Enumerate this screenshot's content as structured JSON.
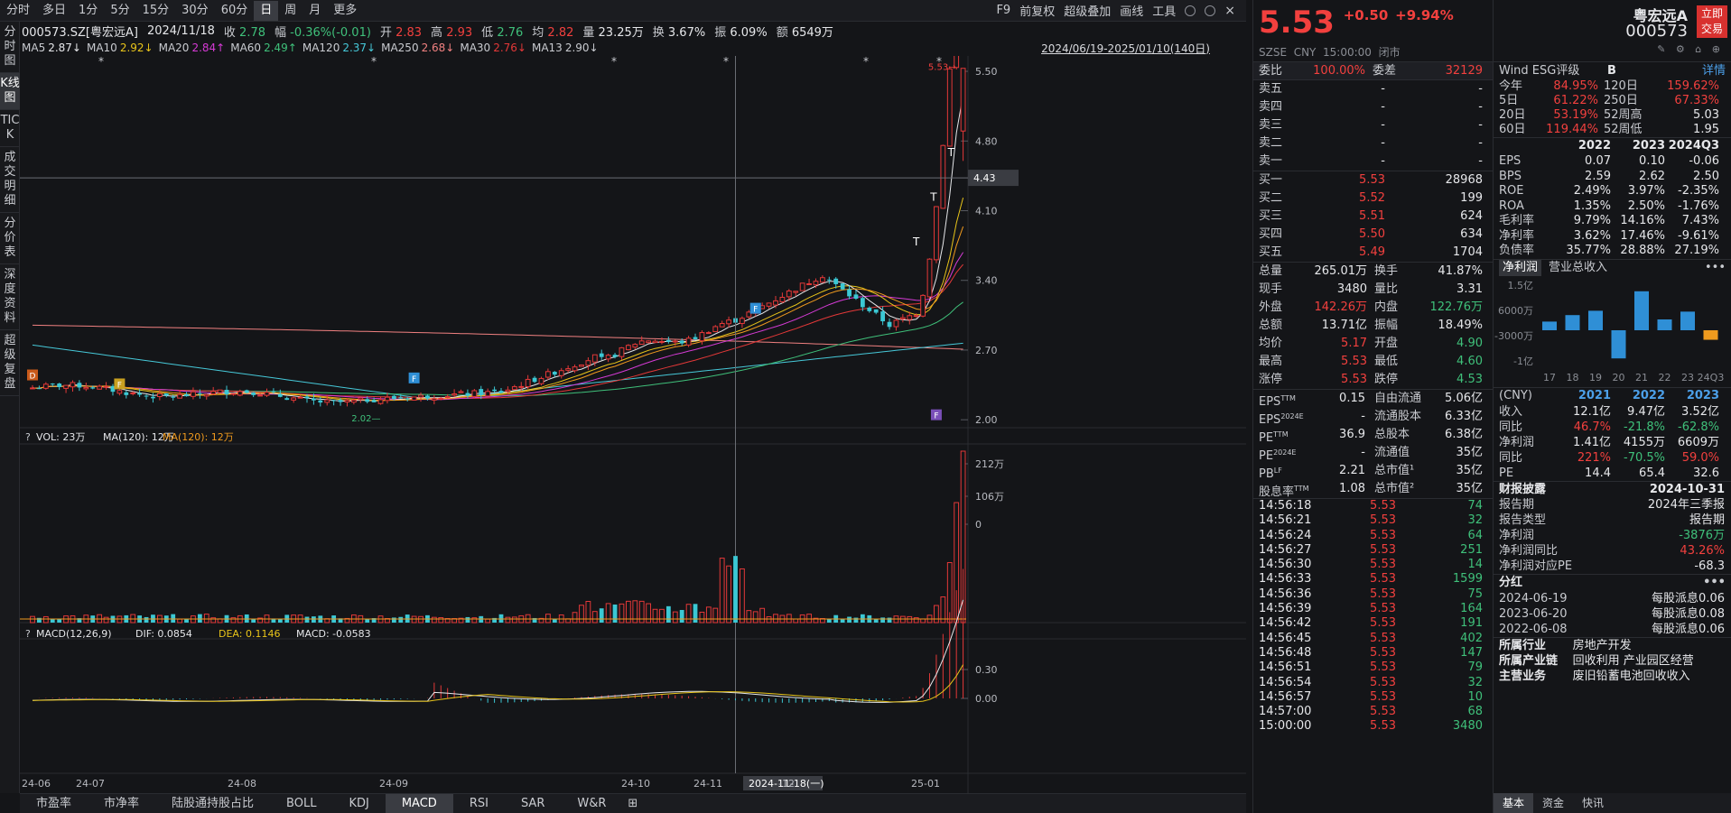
{
  "topbar": {
    "tabs": [
      "分时",
      "多日",
      "1分",
      "5分",
      "15分",
      "30分",
      "60分",
      "日",
      "周",
      "月",
      "更多"
    ],
    "active_index": 7,
    "right_items": [
      "F9",
      "前复权",
      "超级叠加",
      "画线",
      "工具"
    ]
  },
  "left_tabs": [
    "分时图",
    "K线图",
    "TICK",
    "成交明细",
    "分价表",
    "深度资料",
    "超级复盘"
  ],
  "left_tabs_active": 1,
  "info": {
    "code": "000573.SZ[粤宏远A]",
    "date": "2024/11/18",
    "close_label": "收",
    "close": "2.78",
    "change_label": "幅",
    "change": "-0.36%(-0.01)",
    "open_label": "开",
    "open": "2.83",
    "high_label": "高",
    "high": "2.93",
    "low_label": "低",
    "low": "2.76",
    "avg_label": "均",
    "avg": "2.82",
    "vol_label": "量",
    "vol": "23.25万",
    "turn_label": "换",
    "turn": "3.67%",
    "amp_label": "振",
    "amp": "6.09%",
    "amt_label": "额",
    "amt": "6549万"
  },
  "ma_bar": {
    "items": [
      {
        "label": "MA5",
        "value": "2.87↓",
        "color": "#e6e7ea"
      },
      {
        "label": "MA10",
        "value": "2.92↓",
        "color": "#e8c41a"
      },
      {
        "label": "MA20",
        "value": "2.84↑",
        "color": "#d43ad4"
      },
      {
        "label": "MA60",
        "value": "2.49↑",
        "color": "#3fc07a"
      },
      {
        "label": "MA120",
        "value": "2.37↓",
        "color": "#46c8d8"
      },
      {
        "label": "MA250",
        "value": "2.68↓",
        "color": "#f08080"
      },
      {
        "label": "MA30",
        "value": "2.76↓",
        "color": "#e33838"
      },
      {
        "label": "MA13",
        "value": "2.90↓",
        "color": "#c9cbd0"
      }
    ],
    "range": "2024/06/19-2025/01/10(140日)"
  },
  "chart_data": {
    "type": "candlestick",
    "y_ticks": [
      "5.50",
      "4.80",
      "4.10",
      "3.40",
      "2.70",
      "2.00"
    ],
    "y_tick_values": [
      5.5,
      4.8,
      4.1,
      3.4,
      2.7,
      2.0
    ],
    "x_ticks": [
      "24-06",
      "24-07",
      "24-08",
      "24-09",
      "24-10",
      "24-11",
      "2024-11-18(一)",
      "-12",
      "25-01"
    ],
    "crosshair_price": "4.43",
    "max_label": "5.53",
    "min_label": "2.02",
    "markers": [
      "D",
      "F",
      "F",
      "F",
      "T",
      "T",
      "T"
    ],
    "volume": {
      "title": "VOL: 23万",
      "ma1": "MA(120): 12万",
      "ma2": "MA(120): 12万",
      "ticks": [
        "212万",
        "106万",
        "0"
      ]
    },
    "macd": {
      "title": "MACD(12,26,9)",
      "dif": "DIF: 0.0854",
      "dea": "DEA: 0.1146",
      "macd": "MACD: -0.0583",
      "ticks": [
        "0.30",
        "0.00"
      ]
    }
  },
  "bottom_tabs": [
    "市盈率",
    "市净率",
    "陆股通持股占比",
    "BOLL",
    "KDJ",
    "MACD",
    "RSI",
    "SAR",
    "W&R"
  ],
  "bottom_active": 5,
  "quote": {
    "price": "5.53",
    "chg": "+0.50",
    "pct": "+9.94%",
    "name": "粤宏远A",
    "code": "000573",
    "trade_btn": "立即交易",
    "exch": "SZSE",
    "cur": "CNY",
    "time": "15:00:00",
    "status": "闭市"
  },
  "order_ratio": {
    "label1": "委比",
    "v1": "100.00%",
    "label2": "委差",
    "v2": "32129"
  },
  "asks": [
    {
      "l": "卖五",
      "p": "-",
      "v": "-"
    },
    {
      "l": "卖四",
      "p": "-",
      "v": "-"
    },
    {
      "l": "卖三",
      "p": "-",
      "v": "-"
    },
    {
      "l": "卖二",
      "p": "-",
      "v": "-"
    },
    {
      "l": "卖一",
      "p": "-",
      "v": "-"
    }
  ],
  "bids": [
    {
      "l": "买一",
      "p": "5.53",
      "v": "28968"
    },
    {
      "l": "买二",
      "p": "5.52",
      "v": "199"
    },
    {
      "l": "买三",
      "p": "5.51",
      "v": "624"
    },
    {
      "l": "买四",
      "p": "5.50",
      "v": "634"
    },
    {
      "l": "买五",
      "p": "5.49",
      "v": "1704"
    }
  ],
  "stats": [
    {
      "l1": "总量",
      "v1": "265.01万",
      "c1": "white",
      "l2": "换手",
      "v2": "41.87%",
      "c2": "white"
    },
    {
      "l1": "现手",
      "v1": "3480",
      "c1": "white",
      "l2": "量比",
      "v2": "3.31",
      "c2": "white"
    },
    {
      "l1": "外盘",
      "v1": "142.26万",
      "c1": "red",
      "l2": "内盘",
      "v2": "122.76万",
      "c2": "green"
    },
    {
      "l1": "总额",
      "v1": "13.71亿",
      "c1": "white",
      "l2": "振幅",
      "v2": "18.49%",
      "c2": "white"
    },
    {
      "l1": "均价",
      "v1": "5.17",
      "c1": "red",
      "l2": "开盘",
      "v2": "4.90",
      "c2": "green"
    },
    {
      "l1": "最高",
      "v1": "5.53",
      "c1": "red",
      "l2": "最低",
      "v2": "4.60",
      "c2": "green"
    },
    {
      "l1": "涨停",
      "v1": "5.53",
      "c1": "red",
      "l2": "跌停",
      "v2": "4.53",
      "c2": "green"
    }
  ],
  "valuation": [
    {
      "l1": "EPS",
      "s1": "TTM",
      "v1": "0.15",
      "l2": "自由流通",
      "v2": "5.06亿"
    },
    {
      "l1": "EPS",
      "s1": "2024E",
      "v1": "-",
      "l2": "流通股本",
      "v2": "6.33亿"
    },
    {
      "l1": "PE",
      "s1": "TTM",
      "v1": "36.9",
      "l2": "总股本",
      "v2": "6.38亿"
    },
    {
      "l1": "PE",
      "s1": "2024E",
      "v1": "-",
      "l2": "流通值",
      "v2": "35亿"
    },
    {
      "l1": "PB",
      "s1": "LF",
      "v1": "2.21",
      "l2": "总市值¹",
      "v2": "35亿"
    },
    {
      "l1": "股息率",
      "s1": "TTM",
      "v1": "1.08",
      "l2": "总市值²",
      "v2": "35亿"
    }
  ],
  "ticks": [
    {
      "t": "14:56:18",
      "p": "5.53",
      "v": "74",
      "c": "green"
    },
    {
      "t": "14:56:21",
      "p": "5.53",
      "v": "32",
      "c": "green"
    },
    {
      "t": "14:56:24",
      "p": "5.53",
      "v": "64",
      "c": "green"
    },
    {
      "t": "14:56:27",
      "p": "5.53",
      "v": "251",
      "c": "green"
    },
    {
      "t": "14:56:30",
      "p": "5.53",
      "v": "14",
      "c": "green"
    },
    {
      "t": "14:56:33",
      "p": "5.53",
      "v": "1599",
      "c": "green"
    },
    {
      "t": "14:56:36",
      "p": "5.53",
      "v": "75",
      "c": "green"
    },
    {
      "t": "14:56:39",
      "p": "5.53",
      "v": "164",
      "c": "green"
    },
    {
      "t": "14:56:42",
      "p": "5.53",
      "v": "191",
      "c": "green"
    },
    {
      "t": "14:56:45",
      "p": "5.53",
      "v": "402",
      "c": "green"
    },
    {
      "t": "14:56:48",
      "p": "5.53",
      "v": "147",
      "c": "green"
    },
    {
      "t": "14:56:51",
      "p": "5.53",
      "v": "79",
      "c": "green"
    },
    {
      "t": "14:56:54",
      "p": "5.53",
      "v": "32",
      "c": "green"
    },
    {
      "t": "14:56:57",
      "p": "5.53",
      "v": "10",
      "c": "green"
    },
    {
      "t": "14:57:00",
      "p": "5.53",
      "v": "68",
      "c": "green"
    },
    {
      "t": "15:00:00",
      "p": "5.53",
      "v": "3480",
      "c": "green"
    }
  ],
  "wind": {
    "title": "Wind ESG评级",
    "rating": "B",
    "detail": "详情",
    "perf": [
      {
        "l1": "今年",
        "v1": "84.95%",
        "c1": "red",
        "l2": "120日",
        "v2": "159.62%",
        "c2": "red"
      },
      {
        "l1": "5日",
        "v1": "61.22%",
        "c1": "red",
        "l2": "250日",
        "v2": "67.33%",
        "c2": "red"
      },
      {
        "l1": "20日",
        "v1": "53.19%",
        "c1": "red",
        "l2": "52周高",
        "v2": "5.03",
        "c2": "white"
      },
      {
        "l1": "60日",
        "v1": "119.44%",
        "c1": "red",
        "l2": "52周低",
        "v2": "1.95",
        "c2": "white"
      }
    ],
    "years": [
      "2022",
      "2023",
      "2024Q3"
    ],
    "fin": [
      {
        "l": "EPS",
        "a": "0.07",
        "b": "0.10",
        "c": "-0.06"
      },
      {
        "l": "BPS",
        "a": "2.59",
        "b": "2.62",
        "c": "2.50"
      },
      {
        "l": "ROE",
        "a": "2.49%",
        "b": "3.97%",
        "c": "-2.35%"
      },
      {
        "l": "ROA",
        "a": "1.35%",
        "b": "2.50%",
        "c": "-1.76%"
      },
      {
        "l": "毛利率",
        "a": "9.79%",
        "b": "14.16%",
        "c": "7.43%"
      },
      {
        "l": "净利率",
        "a": "3.62%",
        "b": "17.46%",
        "c": "-9.61%"
      },
      {
        "l": "负债率",
        "a": "35.77%",
        "b": "28.88%",
        "c": "27.19%"
      }
    ],
    "tabs": [
      "净利润",
      "营业总收入"
    ],
    "bar_chart": {
      "y_labels": [
        "1.5亿",
        "6000万",
        "-3000万",
        "-1亿"
      ],
      "x_labels": [
        "17",
        "18",
        "19",
        "20",
        "21",
        "22",
        "23",
        "24Q3"
      ],
      "values": [
        0.2,
        0.35,
        0.45,
        -0.65,
        0.9,
        0.25,
        0.43,
        -0.22
      ]
    },
    "unit": "(CNY)",
    "years2": [
      "2021",
      "2022",
      "2023"
    ],
    "fin2": [
      {
        "l": "收入",
        "a": "12.1亿",
        "ca": "white",
        "b": "9.47亿",
        "cb": "white",
        "c": "3.52亿",
        "cc": "white"
      },
      {
        "l": "同比",
        "a": "46.7%",
        "ca": "red",
        "b": "-21.8%",
        "cb": "green",
        "c": "-62.8%",
        "cc": "green"
      },
      {
        "l": "净利润",
        "a": "1.41亿",
        "ca": "white",
        "b": "4155万",
        "cb": "white",
        "c": "6609万",
        "cc": "white"
      },
      {
        "l": "同比",
        "a": "221%",
        "ca": "red",
        "b": "-70.5%",
        "cb": "green",
        "c": "59.0%",
        "cc": "red"
      },
      {
        "l": "PE",
        "a": "14.4",
        "ca": "white",
        "b": "65.4",
        "cb": "white",
        "c": "32.6",
        "cc": "white"
      }
    ],
    "report": [
      {
        "l": "财报披露",
        "v": "2024-10-31",
        "c": "white",
        "b": true
      },
      {
        "l": "报告期",
        "v": "2024年三季报",
        "c": "white"
      },
      {
        "l": "报告类型",
        "v": "报告期",
        "c": "white"
      },
      {
        "l": "净利润",
        "v": "-3876万",
        "c": "green"
      },
      {
        "l": "净利润同比",
        "v": "43.26%",
        "c": "red"
      },
      {
        "l": "净利润对应PE",
        "v": "-68.3",
        "c": "white"
      }
    ],
    "div_title": "分红",
    "divs": [
      {
        "d": "2024-06-19",
        "v": "每股派息0.06"
      },
      {
        "d": "2023-06-20",
        "v": "每股派息0.08"
      },
      {
        "d": "2022-06-08",
        "v": "每股派息0.06"
      }
    ],
    "industry": [
      {
        "l": "所属行业",
        "v": "房地产开发"
      },
      {
        "l": "所属产业链",
        "v": "回收利用  产业园区经营"
      },
      {
        "l": "主营业务",
        "v": "废旧铅蓄电池回收收入"
      }
    ],
    "bottom_tabs": [
      "基本",
      "资金",
      "快讯"
    ]
  }
}
